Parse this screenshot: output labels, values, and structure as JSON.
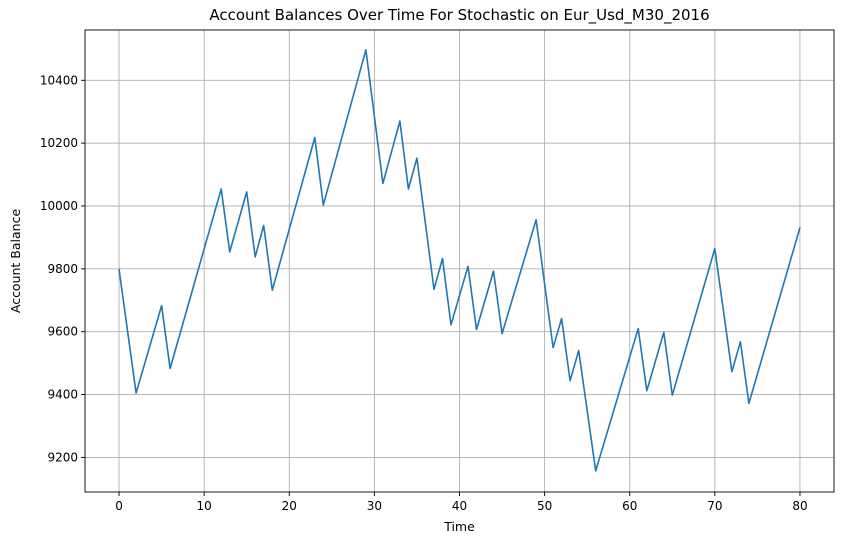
{
  "chart_data": {
    "type": "line",
    "title": "Account Balances Over Time For Stochastic on Eur_Usd_M30_2016",
    "xlabel": "Time",
    "ylabel": "Account Balance",
    "xlim": [
      -4,
      84
    ],
    "ylim": [
      9090,
      10560
    ],
    "xticks": [
      0,
      10,
      20,
      30,
      40,
      50,
      60,
      70,
      80
    ],
    "yticks": [
      9200,
      9400,
      9600,
      9800,
      10000,
      10200,
      10400
    ],
    "grid": true,
    "legend": "none",
    "series": [
      {
        "color": "#1f77b4",
        "x": [
          0,
          2,
          5,
          6,
          12,
          13,
          15,
          16,
          17,
          18,
          23,
          24,
          29,
          31,
          33,
          34,
          35,
          37,
          38,
          39,
          41,
          42,
          44,
          45,
          49,
          51,
          52,
          53,
          54,
          56,
          61,
          62,
          64,
          65,
          70,
          72,
          73,
          74,
          80
        ],
        "y": [
          9800,
          9405,
          9683,
          9483,
          10054,
          9854,
          10045,
          9838,
          9938,
          9732,
          10218,
          10003,
          10497,
          10072,
          10270,
          10054,
          10152,
          9735,
          9833,
          9622,
          9808,
          9607,
          9793,
          9594,
          9956,
          9549,
          9642,
          9444,
          9540,
          9157,
          9610,
          9412,
          9598,
          9398,
          9864,
          9473,
          9568,
          9372,
          9932
        ]
      }
    ]
  }
}
